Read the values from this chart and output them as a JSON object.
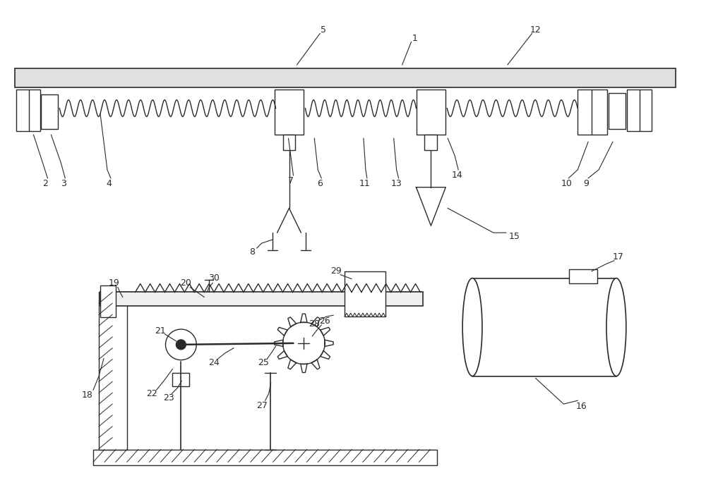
{
  "bg_color": "#ffffff",
  "line_color": "#2a2a2a",
  "lw": 1.0,
  "fig_width": 10.0,
  "fig_height": 6.98
}
